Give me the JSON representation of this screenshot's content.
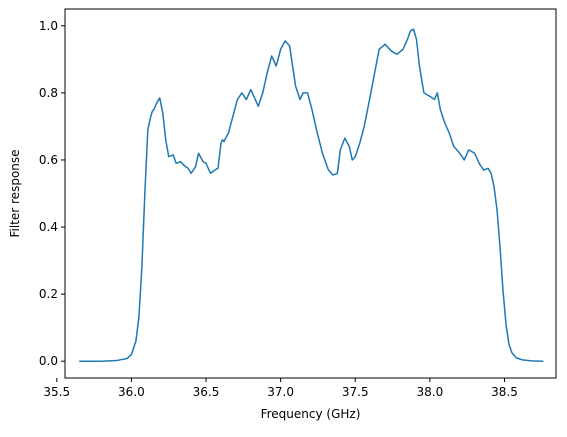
{
  "chart_data": {
    "type": "line",
    "title": "",
    "xlabel": "Frequency (GHz)",
    "ylabel": "Filter response",
    "xlim": [
      35.555,
      38.845
    ],
    "ylim": [
      -0.05,
      1.05
    ],
    "grid": false,
    "legend": "none",
    "line_color": "#1f77b4",
    "x_ticks": [
      35.5,
      36.0,
      36.5,
      37.0,
      37.5,
      38.0,
      38.5
    ],
    "x_tick_labels": [
      "35.5",
      "36.0",
      "36.5",
      "37.0",
      "37.5",
      "38.0",
      "38.5"
    ],
    "y_ticks": [
      0.0,
      0.2,
      0.4,
      0.6,
      0.8,
      1.0
    ],
    "y_tick_labels": [
      "0.0",
      "0.2",
      "0.4",
      "0.6",
      "0.8",
      "1.0"
    ],
    "series": [
      {
        "x": [
          35.65,
          35.8,
          35.9,
          35.97,
          36.0,
          36.03,
          36.05,
          36.07,
          36.09,
          36.11,
          36.13,
          36.14,
          36.15,
          36.17,
          36.19,
          36.21,
          36.23,
          36.25,
          36.28,
          36.3,
          36.33,
          36.35,
          36.38,
          36.4,
          36.43,
          36.45,
          36.48,
          36.5,
          36.53,
          36.56,
          36.58,
          36.6,
          36.61,
          36.62,
          36.65,
          36.68,
          36.71,
          36.74,
          36.77,
          36.8,
          36.82,
          36.85,
          36.88,
          36.91,
          36.94,
          36.97,
          37.0,
          37.03,
          37.06,
          37.08,
          37.1,
          37.13,
          37.15,
          37.18,
          37.21,
          37.24,
          37.28,
          37.32,
          37.35,
          37.38,
          37.4,
          37.43,
          37.46,
          37.48,
          37.5,
          37.53,
          37.56,
          37.6,
          37.63,
          37.66,
          37.7,
          37.74,
          37.78,
          37.82,
          37.85,
          37.87,
          37.89,
          37.91,
          37.93,
          37.96,
          38.0,
          38.03,
          38.05,
          38.07,
          38.1,
          38.13,
          38.16,
          38.2,
          38.23,
          38.26,
          38.3,
          38.33,
          38.36,
          38.39,
          38.41,
          38.43,
          38.45,
          38.47,
          38.49,
          38.51,
          38.53,
          38.55,
          38.58,
          38.62,
          38.68,
          38.76
        ],
        "y": [
          0.0,
          0.0,
          0.002,
          0.008,
          0.02,
          0.06,
          0.13,
          0.28,
          0.5,
          0.69,
          0.73,
          0.745,
          0.75,
          0.77,
          0.785,
          0.74,
          0.66,
          0.61,
          0.615,
          0.59,
          0.595,
          0.585,
          0.575,
          0.56,
          0.58,
          0.62,
          0.595,
          0.59,
          0.56,
          0.57,
          0.575,
          0.65,
          0.66,
          0.655,
          0.68,
          0.73,
          0.78,
          0.8,
          0.78,
          0.81,
          0.79,
          0.76,
          0.8,
          0.86,
          0.91,
          0.88,
          0.93,
          0.955,
          0.94,
          0.88,
          0.82,
          0.78,
          0.8,
          0.8,
          0.75,
          0.69,
          0.62,
          0.57,
          0.555,
          0.56,
          0.63,
          0.665,
          0.64,
          0.6,
          0.61,
          0.65,
          0.7,
          0.79,
          0.86,
          0.93,
          0.945,
          0.925,
          0.915,
          0.93,
          0.96,
          0.985,
          0.99,
          0.96,
          0.88,
          0.8,
          0.79,
          0.78,
          0.8,
          0.75,
          0.71,
          0.68,
          0.64,
          0.62,
          0.6,
          0.63,
          0.62,
          0.59,
          0.57,
          0.575,
          0.56,
          0.52,
          0.45,
          0.34,
          0.21,
          0.11,
          0.05,
          0.025,
          0.01,
          0.004,
          0.001,
          0.0
        ]
      }
    ]
  }
}
